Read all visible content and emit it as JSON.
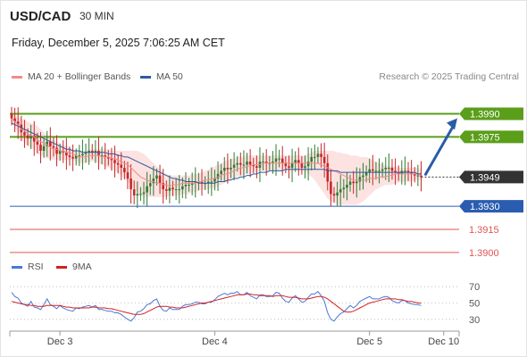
{
  "header": {
    "symbol": "USD/CAD",
    "interval": "30 MIN",
    "datetime": "Friday, December 5, 2025 7:06:25 AM CET"
  },
  "legend": {
    "ma20_label": "MA 20 + Bollinger Bands",
    "ma50_label": "MA 50",
    "rsi_label": "RSI",
    "rsi_ma_label": "9MA",
    "copyright": "Research © 2025 Trading Central"
  },
  "colors": {
    "ma20": "#f28a8a",
    "ma50": "#2f5aa0",
    "bollinger_fill": "#fde2e2",
    "resistance": "#5a9e1a",
    "support": "#2a5db0",
    "lower_levels": "#e05555",
    "current": "#333333",
    "up_candle": "#2e7d32",
    "down_candle": "#c62828",
    "rsi": "#4a78d4",
    "rsi_ma": "#d42020",
    "arrow": "#2b5ba8"
  },
  "chart_data": {
    "type": "candlestick",
    "price_axis": {
      "min": 1.3893,
      "max": 1.3999
    },
    "levels": [
      {
        "label": "1.3990",
        "value": 1.399,
        "kind": "resistance"
      },
      {
        "label": "1.3975",
        "value": 1.3975,
        "kind": "resistance"
      },
      {
        "label": "1.3949",
        "value": 1.3949,
        "kind": "current"
      },
      {
        "label": "1.3930",
        "value": 1.393,
        "kind": "support"
      },
      {
        "label": "1.3915",
        "value": 1.3915,
        "kind": "plain"
      },
      {
        "label": "1.3900",
        "value": 1.39,
        "kind": "plain"
      }
    ],
    "x_ticks": [
      "Dec 3",
      "Dec 4",
      "Dec 5",
      "Dec 10"
    ],
    "x_tick_index": [
      15,
      63,
      111,
      134
    ],
    "forecast_target": 1.399,
    "close": [
      1.3987,
      1.3985,
      1.3983,
      1.3978,
      1.3976,
      1.3974,
      1.3976,
      1.3972,
      1.397,
      1.3966,
      1.3969,
      1.3972,
      1.3969,
      1.3968,
      1.3964,
      1.3966,
      1.3965,
      1.3963,
      1.3962,
      1.3961,
      1.3963,
      1.3963,
      1.3964,
      1.3965,
      1.3966,
      1.3965,
      1.3966,
      1.3963,
      1.3963,
      1.3962,
      1.3961,
      1.396,
      1.3958,
      1.3957,
      1.3955,
      1.3952,
      1.3948,
      1.3941,
      1.3937,
      1.3938,
      1.3938,
      1.3939,
      1.3943,
      1.3945,
      1.3948,
      1.395,
      1.3945,
      1.3941,
      1.394,
      1.3942,
      1.3941,
      1.3941,
      1.3941,
      1.3943,
      1.3944,
      1.3944,
      1.3945,
      1.3946,
      1.3946,
      1.3945,
      1.3945,
      1.3946,
      1.3946,
      1.3948,
      1.3951,
      1.3953,
      1.3955,
      1.3954,
      1.3955,
      1.3957,
      1.3958,
      1.3957,
      1.3957,
      1.3959,
      1.3957,
      1.3956,
      1.3955,
      1.3959,
      1.3959,
      1.3958,
      1.3958,
      1.3959,
      1.3961,
      1.3961,
      1.3958,
      1.3956,
      1.3955,
      1.3958,
      1.396,
      1.3958,
      1.3955,
      1.3956,
      1.3959,
      1.3962,
      1.3962,
      1.3964,
      1.3962,
      1.3958,
      1.3946,
      1.3938,
      1.3937,
      1.3939,
      1.3941,
      1.3942,
      1.3944,
      1.3946,
      1.3945,
      1.3946,
      1.3949,
      1.395,
      1.3952,
      1.3954,
      1.3953,
      1.3953,
      1.3953,
      1.3954,
      1.3955,
      1.3955,
      1.3953,
      1.3952,
      1.3951,
      1.3953,
      1.3953,
      1.3952,
      1.3951,
      1.395,
      1.395,
      1.3949
    ],
    "ma20": [
      1.3987,
      1.3985,
      1.3983,
      1.398,
      1.3979,
      1.3977,
      1.3976,
      1.3975,
      1.3973,
      1.3972,
      1.3971,
      1.397,
      1.3968,
      1.3967,
      1.3967,
      1.3966,
      1.3966,
      1.3965,
      1.3965,
      1.3964,
      1.3963,
      1.3962,
      1.3962,
      1.3962,
      1.3963,
      1.3963,
      1.3963,
      1.3963,
      1.3962,
      1.3962,
      1.3962,
      1.3961,
      1.3961,
      1.396,
      1.3959,
      1.3958,
      1.3957,
      1.3955,
      1.3953,
      1.3951,
      1.3949,
      1.3948,
      1.3947,
      1.3946,
      1.3946,
      1.3945,
      1.3945,
      1.3944,
      1.3944,
      1.3943,
      1.3944,
      1.3944,
      1.3944,
      1.3945,
      1.3945,
      1.3945,
      1.3945,
      1.3945,
      1.3946,
      1.3946,
      1.3947,
      1.3947,
      1.3948,
      1.3948,
      1.3949,
      1.395,
      1.3951,
      1.3951,
      1.3952,
      1.3953,
      1.3954,
      1.3955,
      1.3955,
      1.3956,
      1.3956,
      1.3957,
      1.3957,
      1.3957,
      1.3958,
      1.3958,
      1.3958,
      1.3958,
      1.3958,
      1.3958,
      1.3958,
      1.3958,
      1.3958,
      1.3958,
      1.3958,
      1.3958,
      1.3958,
      1.3958,
      1.3958,
      1.3958,
      1.3958,
      1.3958,
      1.3957,
      1.3956,
      1.3955,
      1.3954,
      1.3953,
      1.3952,
      1.3951,
      1.395,
      1.3949,
      1.3948,
      1.3947,
      1.3947,
      1.3947,
      1.3947,
      1.3947,
      1.3948,
      1.3948,
      1.3948,
      1.3949,
      1.3949,
      1.3949,
      1.395,
      1.395,
      1.3951,
      1.3951,
      1.3951,
      1.3951,
      1.3951,
      1.3951,
      1.3951,
      1.3951,
      1.395
    ],
    "bb_upper": [
      1.399,
      1.3989,
      1.3988,
      1.3987,
      1.3986,
      1.3985,
      1.3984,
      1.3983,
      1.3982,
      1.398,
      1.3978,
      1.3976,
      1.3974,
      1.3973,
      1.3972,
      1.3971,
      1.397,
      1.3969,
      1.3968,
      1.3967,
      1.3966,
      1.3966,
      1.3966,
      1.3966,
      1.3967,
      1.3967,
      1.3967,
      1.3967,
      1.3967,
      1.3967,
      1.3967,
      1.3966,
      1.3966,
      1.3966,
      1.3966,
      1.3966,
      1.3966,
      1.3966,
      1.3966,
      1.3966,
      1.3965,
      1.3964,
      1.3962,
      1.396,
      1.3958,
      1.3956,
      1.3954,
      1.3952,
      1.3951,
      1.395,
      1.395,
      1.395,
      1.395,
      1.395,
      1.395,
      1.395,
      1.3951,
      1.3951,
      1.3951,
      1.3952,
      1.3953,
      1.3954,
      1.3955,
      1.3956,
      1.3957,
      1.3958,
      1.3959,
      1.396,
      1.3961,
      1.3961,
      1.3962,
      1.3962,
      1.3962,
      1.3963,
      1.3963,
      1.3963,
      1.3963,
      1.3963,
      1.3963,
      1.3963,
      1.3963,
      1.3963,
      1.3963,
      1.3963,
      1.3963,
      1.3963,
      1.3963,
      1.3963,
      1.3963,
      1.3963,
      1.3963,
      1.3963,
      1.3964,
      1.3965,
      1.3966,
      1.3966,
      1.3966,
      1.3966,
      1.3966,
      1.3966,
      1.3966,
      1.3965,
      1.3965,
      1.3964,
      1.3964,
      1.3963,
      1.3963,
      1.3963,
      1.3962,
      1.3962,
      1.3962,
      1.3961,
      1.396,
      1.3959,
      1.3958,
      1.3957,
      1.3957,
      1.3956,
      1.3956,
      1.3956,
      1.3955,
      1.3955,
      1.3955,
      1.3955,
      1.3955,
      1.3955,
      1.3955,
      1.3954
    ],
    "bb_lower": [
      1.3984,
      1.3981,
      1.3978,
      1.3974,
      1.3971,
      1.3969,
      1.3968,
      1.3967,
      1.3964,
      1.3963,
      1.3962,
      1.3961,
      1.3961,
      1.396,
      1.396,
      1.396,
      1.396,
      1.396,
      1.396,
      1.396,
      1.3959,
      1.3958,
      1.3958,
      1.3958,
      1.3959,
      1.3959,
      1.3959,
      1.3958,
      1.3957,
      1.3956,
      1.3955,
      1.3954,
      1.3953,
      1.3952,
      1.395,
      1.3948,
      1.3946,
      1.3944,
      1.3941,
      1.3939,
      1.3937,
      1.3936,
      1.3936,
      1.3936,
      1.3936,
      1.3936,
      1.3936,
      1.3936,
      1.3936,
      1.3937,
      1.3937,
      1.3937,
      1.3937,
      1.3938,
      1.3938,
      1.3938,
      1.3939,
      1.3939,
      1.394,
      1.3941,
      1.3941,
      1.3941,
      1.3942,
      1.3942,
      1.3943,
      1.3944,
      1.3945,
      1.3946,
      1.3947,
      1.3948,
      1.3949,
      1.395,
      1.395,
      1.3951,
      1.3951,
      1.3952,
      1.3952,
      1.3953,
      1.3953,
      1.3953,
      1.3953,
      1.3953,
      1.3953,
      1.3953,
      1.3953,
      1.3953,
      1.3953,
      1.3953,
      1.3953,
      1.3953,
      1.3953,
      1.3953,
      1.3951,
      1.3949,
      1.3947,
      1.3944,
      1.3941,
      1.3938,
      1.3935,
      1.3933,
      1.3932,
      1.3931,
      1.3931,
      1.3931,
      1.3931,
      1.3931,
      1.3931,
      1.3931,
      1.3932,
      1.3933,
      1.3935,
      1.3937,
      1.3939,
      1.3941,
      1.3942,
      1.3943,
      1.3944,
      1.3944,
      1.3944,
      1.3945,
      1.3945,
      1.3946,
      1.3946,
      1.3946,
      1.3946,
      1.3947,
      1.3947,
      1.3947
    ],
    "ma50": [
      1.3984,
      1.3983,
      1.3982,
      1.3981,
      1.398,
      1.3979,
      1.3978,
      1.3977,
      1.3976,
      1.3975,
      1.3974,
      1.3973,
      1.3972,
      1.3971,
      1.397,
      1.3969,
      1.3968,
      1.3967,
      1.3967,
      1.3966,
      1.3966,
      1.3966,
      1.3965,
      1.3965,
      1.3965,
      1.3965,
      1.3965,
      1.3965,
      1.3965,
      1.3965,
      1.3964,
      1.3964,
      1.3964,
      1.3963,
      1.3963,
      1.3962,
      1.3962,
      1.3961,
      1.396,
      1.3959,
      1.3958,
      1.3957,
      1.3956,
      1.3955,
      1.3954,
      1.3953,
      1.3952,
      1.3951,
      1.395,
      1.3949,
      1.3948,
      1.3948,
      1.3947,
      1.3947,
      1.3946,
      1.3946,
      1.3946,
      1.3946,
      1.3945,
      1.3945,
      1.3945,
      1.3945,
      1.3945,
      1.3945,
      1.3946,
      1.3946,
      1.3946,
      1.3947,
      1.3947,
      1.3948,
      1.3948,
      1.3949,
      1.3949,
      1.395,
      1.395,
      1.3951,
      1.3951,
      1.3952,
      1.3952,
      1.3952,
      1.3953,
      1.3953,
      1.3953,
      1.3953,
      1.3953,
      1.3954,
      1.3954,
      1.3954,
      1.3954,
      1.3954,
      1.3954,
      1.3954,
      1.3954,
      1.3954,
      1.3954,
      1.3954,
      1.3954,
      1.3954,
      1.3953,
      1.3953,
      1.3953,
      1.3953,
      1.3952,
      1.3952,
      1.3952,
      1.3952,
      1.3952,
      1.3952,
      1.3952,
      1.3952,
      1.3952,
      1.3952,
      1.3952,
      1.3952,
      1.3952,
      1.3952,
      1.3952,
      1.3952,
      1.3952,
      1.3952,
      1.3952,
      1.3952,
      1.3952,
      1.3952,
      1.3952,
      1.3952,
      1.3951,
      1.3951
    ],
    "rsi": {
      "axis": {
        "min": 20,
        "max": 80
      },
      "ticks": [
        70,
        50,
        30
      ],
      "ticks_labels": [
        "70",
        "50",
        "30"
      ],
      "rsi": [
        63,
        58,
        56,
        50,
        48,
        46,
        52,
        45,
        44,
        42,
        48,
        55,
        48,
        46,
        43,
        47,
        44,
        42,
        41,
        40,
        44,
        43,
        45,
        46,
        47,
        45,
        47,
        42,
        42,
        41,
        40,
        40,
        38,
        38,
        36,
        33,
        30,
        28,
        32,
        39,
        40,
        43,
        48,
        49,
        53,
        55,
        46,
        41,
        40,
        44,
        42,
        42,
        42,
        46,
        48,
        48,
        49,
        51,
        51,
        49,
        49,
        51,
        51,
        54,
        58,
        60,
        62,
        60,
        62,
        62,
        64,
        60,
        60,
        63,
        59,
        57,
        55,
        60,
        60,
        58,
        58,
        59,
        63,
        62,
        56,
        52,
        51,
        56,
        59,
        55,
        51,
        52,
        57,
        61,
        61,
        64,
        59,
        52,
        38,
        30,
        28,
        33,
        37,
        39,
        43,
        47,
        44,
        47,
        52,
        54,
        56,
        58,
        55,
        55,
        55,
        57,
        58,
        57,
        53,
        51,
        50,
        53,
        53,
        50,
        49,
        48,
        48,
        47
      ],
      "ma": [
        52,
        51,
        50,
        49,
        48,
        48,
        47,
        47,
        46,
        46,
        46,
        47,
        47,
        47,
        47,
        47,
        46,
        45,
        45,
        44,
        44,
        44,
        44,
        44,
        44,
        45,
        45,
        44,
        44,
        44,
        43,
        43,
        42,
        41,
        40,
        39,
        38,
        37,
        36,
        36,
        36,
        37,
        39,
        41,
        43,
        45,
        46,
        46,
        46,
        45,
        45,
        44,
        44,
        44,
        45,
        46,
        47,
        48,
        49,
        50,
        50,
        51,
        52,
        53,
        54,
        55,
        56,
        57,
        58,
        59,
        60,
        60,
        60,
        61,
        61,
        60,
        60,
        59,
        59,
        59,
        59,
        58,
        59,
        59,
        59,
        58,
        57,
        57,
        57,
        56,
        55,
        55,
        55,
        56,
        57,
        58,
        58,
        57,
        55,
        52,
        49,
        46,
        43,
        40,
        39,
        39,
        40,
        42,
        44,
        46,
        48,
        50,
        51,
        52,
        53,
        54,
        55,
        55,
        55,
        55,
        54,
        54,
        53,
        52,
        52,
        51,
        50,
        50
      ]
    }
  }
}
